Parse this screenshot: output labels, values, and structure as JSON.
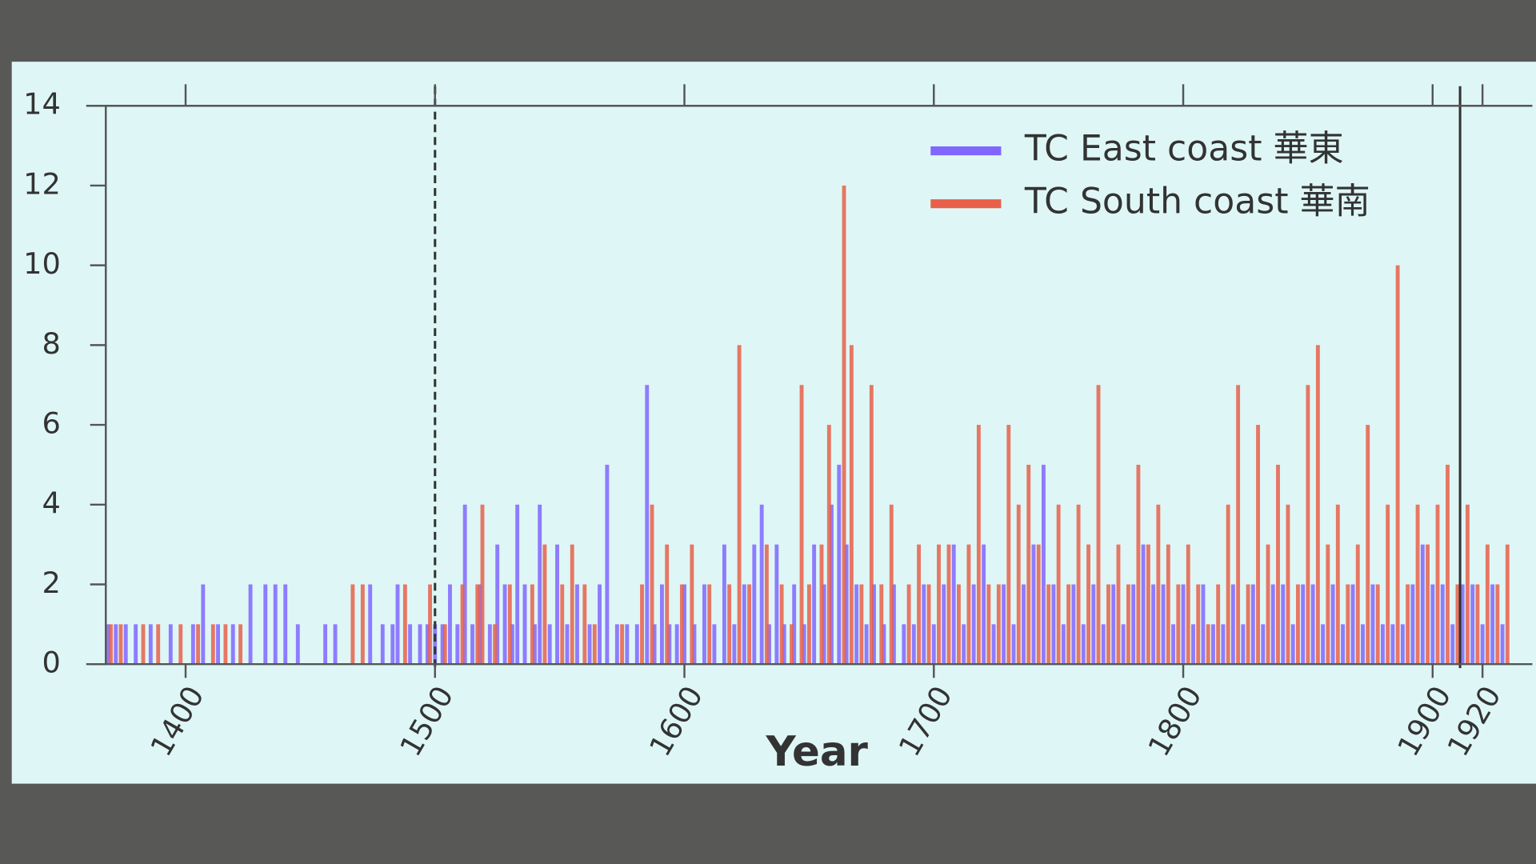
{
  "chart_data": {
    "type": "bar",
    "x_label": "Year",
    "xlim": [
      1368,
      1940
    ],
    "ylim": [
      0,
      14
    ],
    "xticks": [
      1400,
      1500,
      1600,
      1700,
      1800,
      1900,
      1920
    ],
    "yticks": [
      0,
      2,
      4,
      6,
      8,
      10,
      12,
      14
    ],
    "reference_lines": [
      {
        "value": 1500,
        "style": "dashed"
      },
      {
        "value": 1911,
        "style": "solid"
      }
    ],
    "series": [
      {
        "name": "TC East coast 華東",
        "color": "#8066ff",
        "x": [
          1369,
          1372,
          1376,
          1380,
          1386,
          1394,
          1403,
          1407,
          1413,
          1419,
          1426,
          1432,
          1436,
          1440,
          1445,
          1456,
          1460,
          1474,
          1479,
          1483,
          1485,
          1490,
          1494,
          1497,
          1500,
          1503,
          1506,
          1509,
          1512,
          1515,
          1518,
          1522,
          1525,
          1528,
          1531,
          1533,
          1536,
          1540,
          1542,
          1546,
          1549,
          1553,
          1557,
          1562,
          1566,
          1569,
          1573,
          1577,
          1581,
          1585,
          1588,
          1591,
          1594,
          1597,
          1600,
          1604,
          1608,
          1612,
          1616,
          1620,
          1624,
          1628,
          1631,
          1634,
          1637,
          1640,
          1644,
          1648,
          1652,
          1656,
          1659,
          1662,
          1665,
          1669,
          1673,
          1676,
          1680,
          1684,
          1688,
          1692,
          1696,
          1700,
          1704,
          1708,
          1712,
          1716,
          1720,
          1724,
          1728,
          1732,
          1736,
          1740,
          1744,
          1748,
          1752,
          1756,
          1760,
          1764,
          1768,
          1772,
          1776,
          1780,
          1784,
          1788,
          1792,
          1796,
          1800,
          1804,
          1808,
          1812,
          1816,
          1820,
          1824,
          1828,
          1832,
          1836,
          1840,
          1844,
          1848,
          1852,
          1856,
          1860,
          1864,
          1868,
          1872,
          1876,
          1880,
          1884,
          1888,
          1892,
          1896,
          1900,
          1904,
          1908,
          1912,
          1916,
          1920,
          1924,
          1928
        ],
        "values": [
          1,
          1,
          1,
          1,
          1,
          1,
          1,
          2,
          1,
          1,
          2,
          2,
          2,
          2,
          1,
          1,
          1,
          2,
          1,
          1,
          2,
          1,
          1,
          1,
          1,
          1,
          2,
          1,
          4,
          1,
          2,
          1,
          3,
          2,
          1,
          4,
          2,
          1,
          4,
          1,
          3,
          1,
          2,
          1,
          2,
          5,
          1,
          1,
          1,
          7,
          1,
          2,
          1,
          1,
          2,
          1,
          2,
          1,
          3,
          1,
          2,
          3,
          4,
          1,
          3,
          1,
          2,
          1,
          3,
          2,
          4,
          5,
          3,
          2,
          1,
          2,
          1,
          2,
          1,
          1,
          2,
          1,
          2,
          3,
          1,
          2,
          3,
          1,
          2,
          1,
          2,
          3,
          5,
          2,
          1,
          2,
          1,
          2,
          1,
          2,
          1,
          2,
          3,
          2,
          2,
          1,
          2,
          1,
          2,
          1,
          1,
          2,
          1,
          2,
          1,
          2,
          2,
          1,
          2,
          2,
          1,
          2,
          1,
          2,
          1,
          2,
          1,
          1,
          1,
          2,
          3,
          2,
          2,
          1,
          2,
          2,
          1,
          2,
          1
        ]
      },
      {
        "name": "TC South coast 華南",
        "color": "#e8604a",
        "x": [
          1370,
          1374,
          1383,
          1389,
          1398,
          1405,
          1411,
          1416,
          1422,
          1467,
          1471,
          1488,
          1498,
          1504,
          1511,
          1517,
          1519,
          1524,
          1530,
          1539,
          1544,
          1551,
          1555,
          1560,
          1564,
          1575,
          1583,
          1587,
          1593,
          1599,
          1603,
          1610,
          1618,
          1622,
          1626,
          1633,
          1639,
          1643,
          1647,
          1650,
          1655,
          1658,
          1664,
          1667,
          1671,
          1675,
          1679,
          1683,
          1690,
          1694,
          1698,
          1702,
          1706,
          1710,
          1714,
          1718,
          1722,
          1726,
          1730,
          1734,
          1738,
          1742,
          1746,
          1750,
          1754,
          1758,
          1762,
          1766,
          1770,
          1774,
          1778,
          1782,
          1786,
          1790,
          1794,
          1798,
          1802,
          1806,
          1810,
          1814,
          1818,
          1822,
          1826,
          1830,
          1834,
          1838,
          1842,
          1846,
          1850,
          1854,
          1858,
          1862,
          1866,
          1870,
          1874,
          1878,
          1882,
          1886,
          1890,
          1894,
          1898,
          1902,
          1906,
          1910,
          1914,
          1918,
          1922,
          1926,
          1930
        ],
        "values": [
          1,
          1,
          1,
          1,
          1,
          1,
          1,
          1,
          1,
          2,
          2,
          2,
          2,
          1,
          2,
          2,
          4,
          1,
          2,
          2,
          3,
          2,
          3,
          2,
          1,
          1,
          2,
          4,
          3,
          2,
          3,
          2,
          2,
          8,
          2,
          3,
          2,
          1,
          7,
          2,
          3,
          6,
          12,
          8,
          2,
          7,
          2,
          4,
          2,
          3,
          2,
          3,
          3,
          2,
          3,
          6,
          2,
          2,
          6,
          4,
          5,
          3,
          2,
          4,
          2,
          4,
          3,
          7,
          2,
          3,
          2,
          5,
          3,
          4,
          3,
          2,
          3,
          2,
          1,
          2,
          4,
          7,
          2,
          6,
          3,
          5,
          4,
          2,
          7,
          8,
          3,
          4,
          2,
          3,
          6,
          2,
          4,
          10,
          2,
          4,
          3,
          4,
          5,
          2,
          4,
          2,
          3,
          2,
          3
        ]
      }
    ]
  }
}
